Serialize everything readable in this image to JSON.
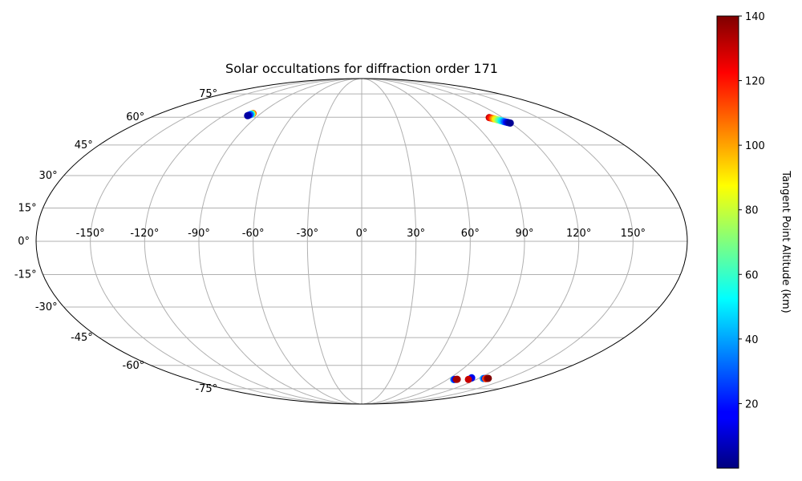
{
  "chart_data": {
    "type": "scatter",
    "projection": "mollweide",
    "title": "Solar occultations for diffraction order 171",
    "lon_ticks": [
      -150,
      -120,
      -90,
      -60,
      -30,
      0,
      30,
      60,
      90,
      120,
      150
    ],
    "lon_tick_labels": [
      "-150°",
      "-120°",
      "-90°",
      "-60°",
      "-30°",
      "0°",
      "30°",
      "60°",
      "90°",
      "120°",
      "150°"
    ],
    "lat_ticks": [
      -75,
      -60,
      -45,
      -30,
      -15,
      0,
      15,
      30,
      45,
      60,
      75
    ],
    "lat_tick_labels": [
      "-75°",
      "-60°",
      "-45°",
      "-30°",
      "-15°",
      "0°",
      "15°",
      "30°",
      "45°",
      "60°",
      "75°"
    ],
    "grid": true,
    "colorbar": {
      "label": "Tangent Point Altitude (km)",
      "colormap": "jet",
      "range": [
        0,
        140
      ],
      "ticks": [
        20,
        40,
        60,
        80,
        100,
        120,
        140
      ],
      "tick_labels": [
        "20",
        "40",
        "60",
        "80",
        "100",
        "120",
        "140"
      ]
    },
    "points": [
      {
        "lon": -97.0,
        "lat": 62.2,
        "value": 110
      },
      {
        "lon": -97.4,
        "lat": 62.0,
        "value": 80
      },
      {
        "lon": -97.8,
        "lat": 61.8,
        "value": 50
      },
      {
        "lon": -98.2,
        "lat": 61.5,
        "value": 30
      },
      {
        "lon": -98.8,
        "lat": 61.1,
        "value": 12
      },
      {
        "lon": -99.2,
        "lat": 60.9,
        "value": 5
      },
      {
        "lon": 108.5,
        "lat": 59.8,
        "value": 130
      },
      {
        "lon": 109.3,
        "lat": 59.6,
        "value": 120
      },
      {
        "lon": 110.2,
        "lat": 59.3,
        "value": 110
      },
      {
        "lon": 111.0,
        "lat": 59.1,
        "value": 100
      },
      {
        "lon": 111.8,
        "lat": 58.9,
        "value": 90
      },
      {
        "lon": 112.6,
        "lat": 58.6,
        "value": 80
      },
      {
        "lon": 113.4,
        "lat": 58.4,
        "value": 70
      },
      {
        "lon": 114.2,
        "lat": 58.1,
        "value": 60
      },
      {
        "lon": 115.0,
        "lat": 57.9,
        "value": 50
      },
      {
        "lon": 115.8,
        "lat": 57.6,
        "value": 40
      },
      {
        "lon": 116.6,
        "lat": 57.4,
        "value": 30
      },
      {
        "lon": 117.4,
        "lat": 57.2,
        "value": 20
      },
      {
        "lon": 118.2,
        "lat": 57.0,
        "value": 10
      },
      {
        "lon": 119.0,
        "lat": 56.8,
        "value": 5
      },
      {
        "lon": 119.6,
        "lat": 56.7,
        "value": 3
      },
      {
        "lon": 96.5,
        "lat": -68.7,
        "value": 40
      },
      {
        "lon": 97.2,
        "lat": -68.6,
        "value": 20
      },
      {
        "lon": 99.0,
        "lat": -68.6,
        "value": 135
      },
      {
        "lon": 99.6,
        "lat": -68.5,
        "value": 135
      },
      {
        "lon": 111.5,
        "lat": -67.5,
        "value": 40
      },
      {
        "lon": 111.8,
        "lat": -67.6,
        "value": 15
      },
      {
        "lon": 111.6,
        "lat": -68.6,
        "value": 130
      },
      {
        "lon": 125.0,
        "lat": -68.0,
        "value": 40
      },
      {
        "lon": 126.5,
        "lat": -68.0,
        "value": 20
      },
      {
        "lon": 127.8,
        "lat": -68.1,
        "value": 110
      },
      {
        "lon": 128.8,
        "lat": -68.0,
        "value": 130
      },
      {
        "lon": 129.8,
        "lat": -67.9,
        "value": 140
      }
    ]
  }
}
